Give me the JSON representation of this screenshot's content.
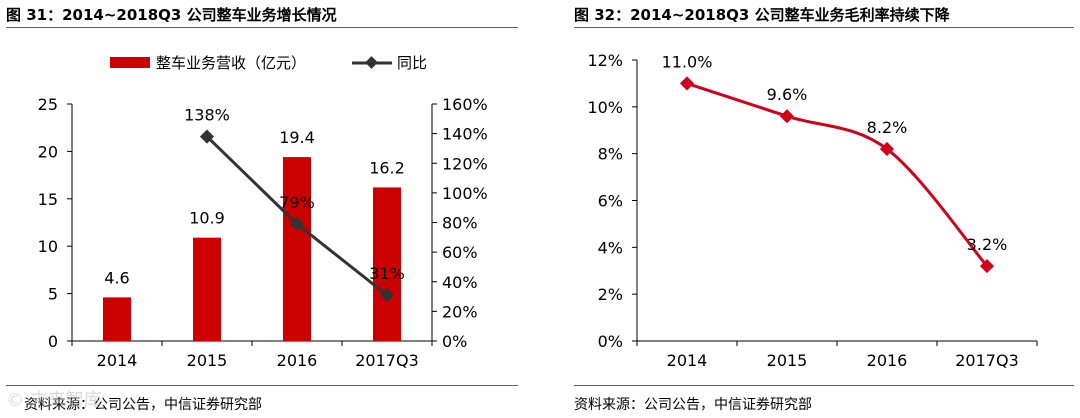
{
  "left_panel": {
    "title": "图 31：2014~2018Q3 公司整车业务增长情况",
    "source": "资料来源：公司公告，中信证券研究部"
  },
  "right_panel": {
    "title": "图 32：2014~2018Q3 公司整车业务毛利率持续下降",
    "source": "资料来源：公司公告，中信证券研究部"
  },
  "watermark": "© 未来智库",
  "colors": {
    "bar": "#cc0000",
    "line_black": "#333333",
    "line_red": "#d0021b",
    "rule": "#c0392b"
  },
  "chart_data": [
    {
      "type": "bar",
      "title": "",
      "categories": [
        "2014",
        "2015",
        "2016",
        "2017Q3"
      ],
      "series": [
        {
          "name": "整车业务营收（亿元）",
          "type": "bar",
          "axis": "left",
          "values": [
            4.6,
            10.9,
            19.4,
            16.2
          ],
          "labels": [
            "4.6",
            "10.9",
            "19.4",
            "16.2"
          ]
        },
        {
          "name": "同比",
          "type": "line",
          "axis": "right",
          "values": [
            null,
            138,
            79,
            31
          ],
          "labels": [
            "",
            "138%",
            "79%",
            "31%"
          ]
        }
      ],
      "y_left": {
        "min": 0,
        "max": 25,
        "ticks": [
          "0",
          "5",
          "10",
          "15",
          "20",
          "25"
        ]
      },
      "y_right": {
        "min": 0,
        "max": 160,
        "ticks": [
          "0%",
          "20%",
          "40%",
          "60%",
          "80%",
          "100%",
          "120%",
          "140%",
          "160%"
        ]
      },
      "legend": "top"
    },
    {
      "type": "line",
      "title": "",
      "categories": [
        "2014",
        "2015",
        "2016",
        "2017Q3"
      ],
      "series": [
        {
          "name": "毛利率",
          "values": [
            11.0,
            9.6,
            8.2,
            3.2
          ],
          "labels": [
            "11.0%",
            "9.6%",
            "8.2%",
            "3.2%"
          ]
        }
      ],
      "y": {
        "min": 0,
        "max": 12,
        "ticks": [
          "0%",
          "2%",
          "4%",
          "6%",
          "8%",
          "10%",
          "12%"
        ]
      }
    }
  ]
}
